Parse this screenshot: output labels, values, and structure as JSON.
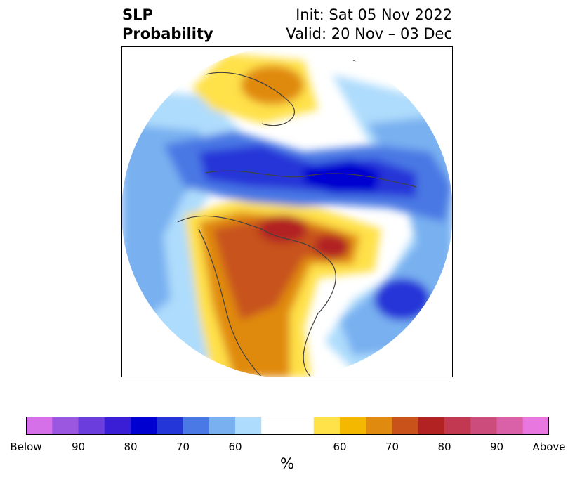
{
  "title": {
    "left_line1": "SLP",
    "left_line2": "Probability",
    "right_line1": "Init: Sat 05 Nov 2022",
    "right_line2": "Valid: 20 Nov – 03 Dec"
  },
  "colorbar": {
    "label": "%",
    "colors": [
      "#d670e8",
      "#9c57e0",
      "#6a3ddc",
      "#3a1ed6",
      "#0000d0",
      "#2536d8",
      "#4a78e4",
      "#78b0f0",
      "#aedcfc",
      "#ffffff",
      "#ffffff",
      "#ffe14a",
      "#f5b800",
      "#e08a10",
      "#c8521a",
      "#b22222",
      "#c23850",
      "#cc4c7c",
      "#da60a8",
      "#e878e0"
    ],
    "ticks": [
      {
        "label": "Below",
        "frac": 0.0
      },
      {
        "label": "90",
        "frac": 0.1
      },
      {
        "label": "80",
        "frac": 0.2
      },
      {
        "label": "70",
        "frac": 0.3
      },
      {
        "label": "60",
        "frac": 0.4
      },
      {
        "label": "60",
        "frac": 0.6
      },
      {
        "label": "70",
        "frac": 0.7
      },
      {
        "label": "80",
        "frac": 0.8
      },
      {
        "label": "90",
        "frac": 0.9
      },
      {
        "label": "Above",
        "frac": 1.0
      }
    ]
  },
  "colors": {
    "map_lines": "#404040",
    "frame": "#000000"
  }
}
